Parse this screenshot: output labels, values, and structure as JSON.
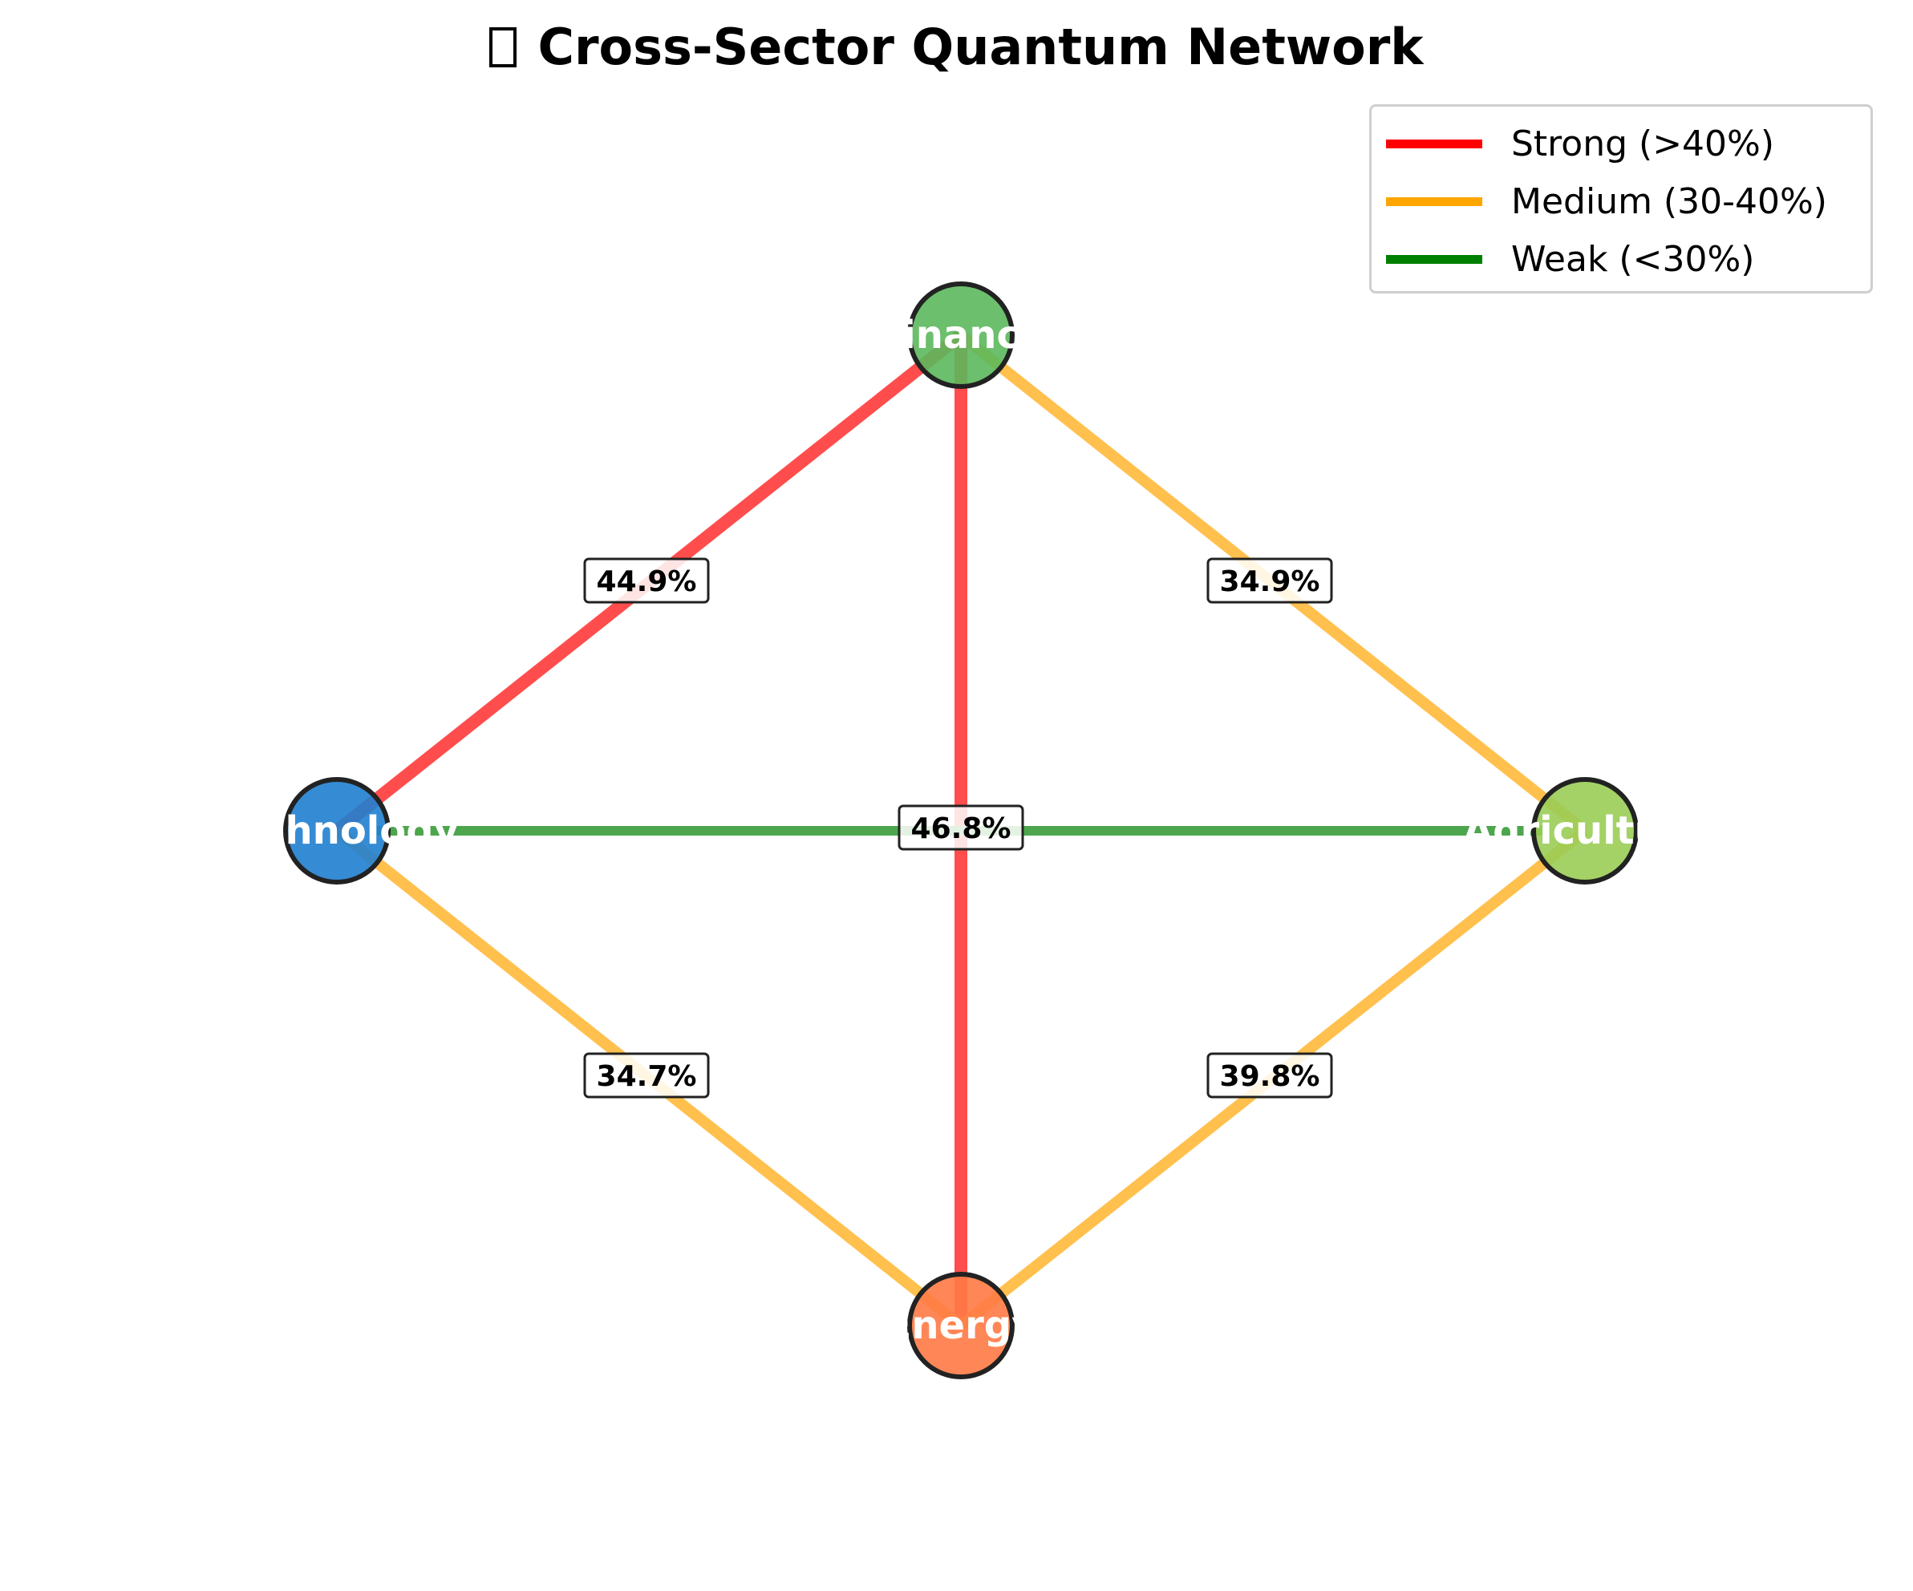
{
  "title": "Cross-Sector Quantum Network",
  "title_icon": "missing-glyph-box",
  "legend": {
    "items": [
      {
        "label": "Strong (>40%)",
        "color": "#ff0000"
      },
      {
        "label": "Medium (30-40%)",
        "color": "#ffa500"
      },
      {
        "label": "Weak (<30%)",
        "color": "#008000"
      }
    ]
  },
  "nodes": [
    {
      "id": "finance",
      "label": "Finance",
      "color": "#5cb85c"
    },
    {
      "id": "technology",
      "label": "Technology",
      "color": "#1f7fd0"
    },
    {
      "id": "agriculture",
      "label": "Agriculture",
      "color": "#9acd55"
    },
    {
      "id": "energy",
      "label": "Energy",
      "color": "#ff7a45"
    }
  ],
  "edges": [
    {
      "from": "technology",
      "to": "finance",
      "value": "44.9%",
      "strength": "strong"
    },
    {
      "from": "finance",
      "to": "agriculture",
      "value": "34.9%",
      "strength": "medium"
    },
    {
      "from": "finance",
      "to": "energy",
      "value": "46.8%",
      "strength": "strong"
    },
    {
      "from": "technology",
      "to": "agriculture",
      "value": "",
      "strength": "weak"
    },
    {
      "from": "technology",
      "to": "energy",
      "value": "34.7%",
      "strength": "medium"
    },
    {
      "from": "agriculture",
      "to": "energy",
      "value": "39.8%",
      "strength": "medium"
    }
  ],
  "strength_colors": {
    "strong": "#ff4d4d",
    "medium": "#ffc04d",
    "weak": "#4da64d"
  }
}
